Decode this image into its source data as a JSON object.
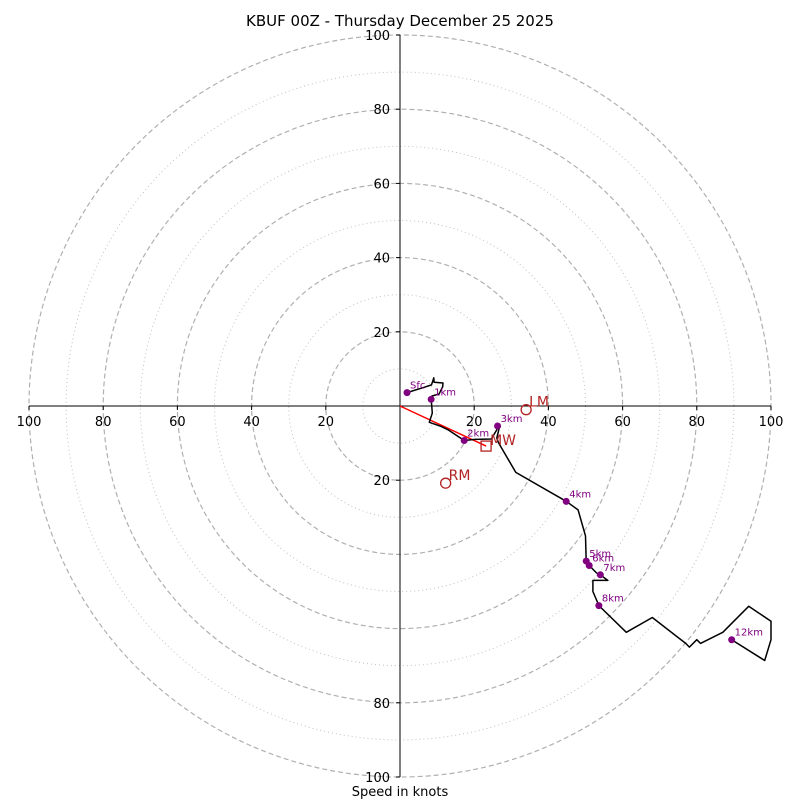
{
  "chart_data": {
    "type": "hodograph",
    "title": "KBUF 00Z - Thursday December 25 2025",
    "xlabel": "Speed in knots",
    "units": "knots",
    "axis_range": [
      -100,
      100
    ],
    "ring_major_speeds": [
      10,
      30,
      50,
      70,
      90
    ],
    "ring_minor_speeds": [
      20,
      40,
      60,
      80,
      100
    ],
    "x_tick_labels": [
      "100",
      "80",
      "60",
      "40",
      "20",
      "20",
      "40",
      "60",
      "80",
      "100"
    ],
    "x_tick_values": [
      -100,
      -80,
      -60,
      -40,
      -20,
      20,
      40,
      60,
      80,
      100
    ],
    "y_tick_labels_top": [
      "100",
      "80",
      "60",
      "40",
      "20"
    ],
    "y_tick_values_top": [
      100,
      80,
      60,
      40,
      20
    ],
    "y_tick_labels_bottom": [
      "20",
      "80",
      "100"
    ],
    "y_tick_values_bottom": [
      -20,
      -80,
      -100
    ],
    "trace": [
      [
        1.9,
        3.6
      ],
      [
        6.1,
        4.9
      ],
      [
        8.5,
        5.7
      ],
      [
        9.1,
        7.6
      ],
      [
        9.2,
        6.4
      ],
      [
        11.6,
        6.2
      ],
      [
        11.5,
        5.2
      ],
      [
        10.5,
        3.2
      ],
      [
        8.6,
        2.7
      ],
      [
        8.4,
        1.8
      ],
      [
        8.7,
        -1.9
      ],
      [
        7.9,
        -4.4
      ],
      [
        11.1,
        -5.5
      ],
      [
        13.1,
        -6.5
      ],
      [
        17.3,
        -9.3
      ],
      [
        20.2,
        -9.0
      ],
      [
        24.6,
        -8.9
      ],
      [
        26.1,
        -6.4
      ],
      [
        26.3,
        -5.4
      ],
      [
        26.7,
        -6.1
      ],
      [
        26.1,
        -8.6
      ],
      [
        26.5,
        -9.8
      ],
      [
        31.2,
        -17.9
      ],
      [
        44.8,
        -25.7
      ],
      [
        48.0,
        -28.0
      ],
      [
        50.0,
        -35.0
      ],
      [
        50.2,
        -41.8
      ],
      [
        51.0,
        -43.0
      ],
      [
        53.0,
        -45.0
      ],
      [
        54.0,
        -45.5
      ],
      [
        56.0,
        -47.0
      ],
      [
        52.0,
        -47.0
      ],
      [
        52.0,
        -50.0
      ],
      [
        53.6,
        -53.8
      ],
      [
        61.0,
        -61.0
      ],
      [
        68.0,
        -57.0
      ],
      [
        77.0,
        -64.0
      ],
      [
        78.0,
        -65.0
      ],
      [
        80.0,
        -63.0
      ],
      [
        81.0,
        -64.0
      ],
      [
        87.0,
        -61.0
      ],
      [
        94.0,
        -54.0
      ],
      [
        100.0,
        -58.0
      ],
      [
        100.0,
        -63.0
      ],
      [
        98.3,
        -68.6
      ],
      [
        89.4,
        -63.0
      ]
    ],
    "height_markers": [
      {
        "label": "Sfc",
        "u": 1.9,
        "v": 3.6
      },
      {
        "label": "1km",
        "u": 8.4,
        "v": 1.8
      },
      {
        "label": "2km",
        "u": 17.3,
        "v": -9.3
      },
      {
        "label": "3km",
        "u": 26.3,
        "v": -5.4
      },
      {
        "label": "4km",
        "u": 44.8,
        "v": -25.7
      },
      {
        "label": "5km",
        "u": 50.2,
        "v": -41.8
      },
      {
        "label": "6km",
        "u": 51.0,
        "v": -43.0
      },
      {
        "label": "7km",
        "u": 54.0,
        "v": -45.5
      },
      {
        "label": "8km",
        "u": 53.6,
        "v": -53.8
      },
      {
        "label": "12km",
        "u": 89.4,
        "v": -63.0
      }
    ],
    "storm_motion": {
      "mean_wind": {
        "label": "MW",
        "u": 23.2,
        "v": -10.8
      },
      "left_mover": {
        "label": "LM",
        "u": 34.0,
        "v": -1.0
      },
      "right_mover": {
        "label": "RM",
        "u": 12.3,
        "v": -20.8
      }
    },
    "shear_vector": {
      "from": [
        0,
        0
      ],
      "to": [
        23.2,
        -10.8
      ]
    },
    "colors": {
      "trace": "#000000",
      "markers": "#800080",
      "storm_motion": "#b22222",
      "shear_vector": "#ff0000",
      "ring_major": "#b0b0b0",
      "ring_minor": "#c0c0c0"
    }
  }
}
